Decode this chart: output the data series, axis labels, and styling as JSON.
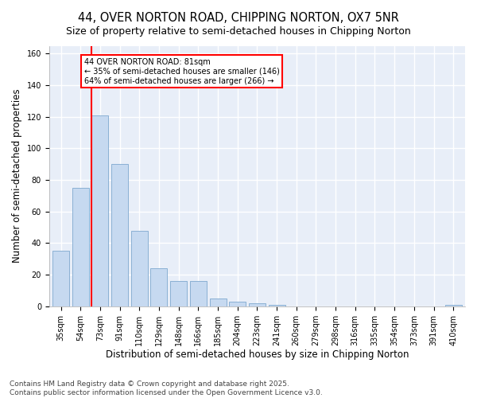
{
  "title": "44, OVER NORTON ROAD, CHIPPING NORTON, OX7 5NR",
  "subtitle": "Size of property relative to semi-detached houses in Chipping Norton",
  "xlabel": "Distribution of semi-detached houses by size in Chipping Norton",
  "ylabel": "Number of semi-detached properties",
  "bar_labels": [
    "35sqm",
    "54sqm",
    "73sqm",
    "91sqm",
    "110sqm",
    "129sqm",
    "148sqm",
    "166sqm",
    "185sqm",
    "204sqm",
    "223sqm",
    "241sqm",
    "260sqm",
    "279sqm",
    "298sqm",
    "316sqm",
    "335sqm",
    "354sqm",
    "373sqm",
    "391sqm",
    "410sqm"
  ],
  "bar_values": [
    35,
    75,
    121,
    90,
    48,
    24,
    16,
    16,
    5,
    3,
    2,
    1,
    0,
    0,
    0,
    0,
    0,
    0,
    0,
    0,
    1
  ],
  "bar_color": "#c6d9f0",
  "bar_edge_color": "#8ab0d4",
  "vline_color": "red",
  "annotation_text": "44 OVER NORTON ROAD: 81sqm\n← 35% of semi-detached houses are smaller (146)\n64% of semi-detached houses are larger (266) →",
  "annotation_box_color": "white",
  "annotation_box_edge_color": "red",
  "ylim": [
    0,
    165
  ],
  "yticks": [
    0,
    20,
    40,
    60,
    80,
    100,
    120,
    140,
    160
  ],
  "footer": "Contains HM Land Registry data © Crown copyright and database right 2025.\nContains public sector information licensed under the Open Government Licence v3.0.",
  "bg_color": "#ffffff",
  "plot_bg_color": "#e8eef8",
  "grid_color": "#ffffff",
  "title_fontsize": 10.5,
  "subtitle_fontsize": 9,
  "tick_fontsize": 7,
  "axis_label_fontsize": 8.5,
  "footer_fontsize": 6.5,
  "vline_x_index": 2
}
